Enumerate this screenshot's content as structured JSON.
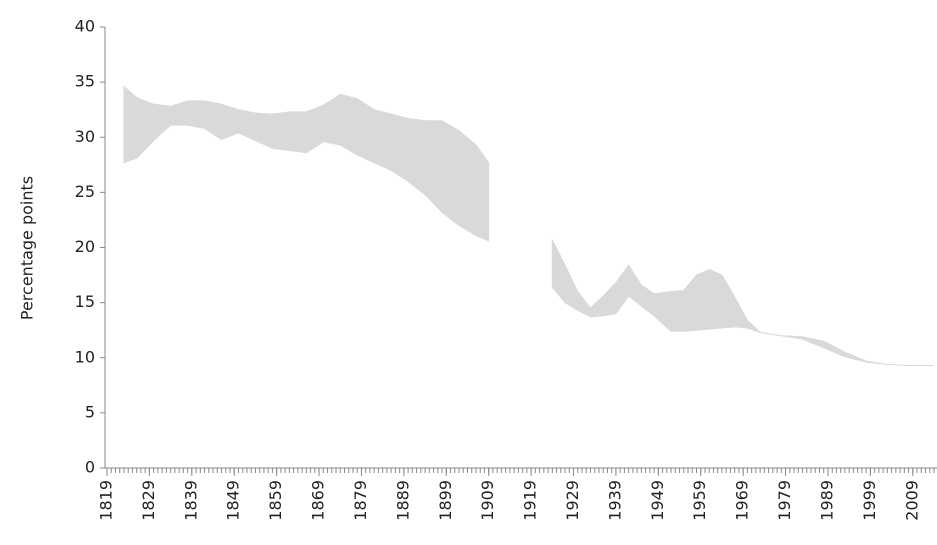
{
  "chart_data": {
    "type": "range_area",
    "y_label": "Percentage points",
    "color": "#d9d9d9",
    "x": [
      1823,
      1826,
      1830,
      1834,
      1838,
      1842,
      1846,
      1850,
      1854,
      1858,
      1862,
      1866,
      1870,
      1874,
      1878,
      1882,
      1886,
      1890,
      1894,
      1898,
      1902,
      1906,
      1909,
      1910,
      1924,
      1927,
      1930,
      1933,
      1936,
      1939,
      1942,
      1945,
      1948,
      1952,
      1955,
      1958,
      1961,
      1964,
      1967,
      1970,
      1973,
      1978,
      1983,
      1988,
      1993,
      1998,
      2003,
      2008,
      2014
    ],
    "high": [
      34.6,
      33.6,
      33.0,
      32.8,
      33.3,
      33.3,
      33.0,
      32.5,
      32.2,
      32.1,
      32.3,
      32.3,
      32.9,
      33.9,
      33.5,
      32.5,
      32.1,
      31.7,
      31.5,
      31.5,
      30.6,
      29.3,
      27.7,
      null,
      20.7,
      18.4,
      16.0,
      14.5,
      15.6,
      16.8,
      18.4,
      16.6,
      15.8,
      16.0,
      16.1,
      17.5,
      18.0,
      17.5,
      15.5,
      13.4,
      12.3,
      12.0,
      11.9,
      11.5,
      10.5,
      9.7,
      9.4,
      9.3,
      9.3
    ],
    "low": [
      27.7,
      28.1,
      29.7,
      31.1,
      31.1,
      30.8,
      29.8,
      30.4,
      29.7,
      29.0,
      28.8,
      28.6,
      29.6,
      29.3,
      28.4,
      27.7,
      27.0,
      26.0,
      24.8,
      23.2,
      22.0,
      21.1,
      20.6,
      null,
      16.4,
      15.0,
      14.3,
      13.7,
      13.8,
      14.0,
      15.6,
      14.7,
      13.8,
      12.4,
      12.4,
      12.5,
      12.6,
      12.7,
      12.8,
      12.7,
      12.3,
      12.0,
      11.7,
      10.9,
      10.1,
      9.6,
      9.4,
      9.3,
      9.3
    ],
    "xlim": [
      1819,
      2014
    ],
    "xticks": [
      1819,
      1829,
      1839,
      1849,
      1859,
      1869,
      1879,
      1889,
      1899,
      1909,
      1919,
      1929,
      1939,
      1949,
      1959,
      1969,
      1979,
      1989,
      1999,
      2009
    ],
    "ylim": [
      0,
      40
    ],
    "yticks": [
      0,
      5,
      10,
      15,
      20,
      25,
      30,
      35,
      40
    ],
    "grid": false
  }
}
